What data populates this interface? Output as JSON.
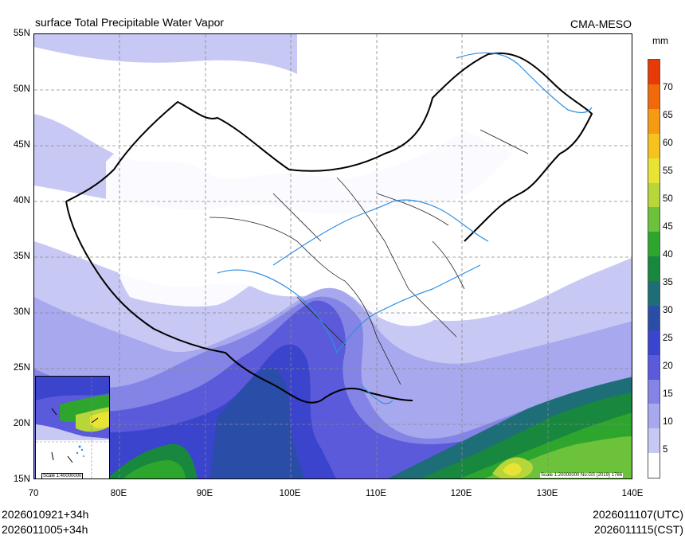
{
  "header": {
    "title": "surface Total Precipitable Water Vapor",
    "model": "CMA-MESO"
  },
  "map": {
    "lat_labels": [
      "55N",
      "50N",
      "45N",
      "40N",
      "35N",
      "30N",
      "25N",
      "20N",
      "15N"
    ],
    "lon_labels": [
      "70",
      "80E",
      "90E",
      "100E",
      "110E",
      "120E",
      "130E",
      "140E"
    ],
    "inset_scale": "Scale 1:40000000",
    "main_scale": "Scale 1:20000000 No:GS (2019) 1786"
  },
  "colorbar": {
    "unit": "mm",
    "ticks": [
      "5",
      "10",
      "15",
      "20",
      "25",
      "30",
      "35",
      "40",
      "45",
      "50",
      "55",
      "60",
      "65",
      "70"
    ],
    "colors": [
      "#ffffff",
      "#c8c8f5",
      "#a8a8ee",
      "#8484e6",
      "#5a5ada",
      "#3a44cc",
      "#2a4ea8",
      "#1e6e78",
      "#17883e",
      "#2ea62e",
      "#6cc23a",
      "#b6d63a",
      "#e8e436",
      "#f5c21e",
      "#f59a12",
      "#f06a0a",
      "#e83a06"
    ]
  },
  "footer": {
    "init_utc": "2026010921+34h",
    "init_cst": "2026011005+34h",
    "valid_utc": "2026011107(UTC)",
    "valid_cst": "2026011115(CST)"
  }
}
